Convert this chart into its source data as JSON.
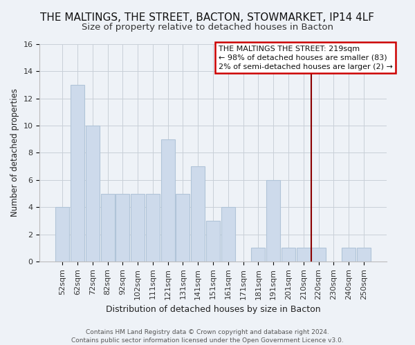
{
  "title": "THE MALTINGS, THE STREET, BACTON, STOWMARKET, IP14 4LF",
  "subtitle": "Size of property relative to detached houses in Bacton",
  "xlabel": "Distribution of detached houses by size in Bacton",
  "ylabel": "Number of detached properties",
  "categories": [
    "52sqm",
    "62sqm",
    "72sqm",
    "82sqm",
    "92sqm",
    "102sqm",
    "111sqm",
    "121sqm",
    "131sqm",
    "141sqm",
    "151sqm",
    "161sqm",
    "171sqm",
    "181sqm",
    "191sqm",
    "201sqm",
    "210sqm",
    "220sqm",
    "230sqm",
    "240sqm",
    "250sqm"
  ],
  "values": [
    4,
    13,
    10,
    5,
    5,
    5,
    5,
    9,
    5,
    7,
    3,
    4,
    0,
    1,
    6,
    1,
    1,
    1,
    0,
    1,
    1
  ],
  "bar_color": "#cddaeb",
  "bar_edge_color": "#b0c4d8",
  "ylim": [
    0,
    16
  ],
  "yticks": [
    0,
    2,
    4,
    6,
    8,
    10,
    12,
    14,
    16
  ],
  "vline_color": "#8b0000",
  "annotation_title": "THE MALTINGS THE STREET: 219sqm",
  "annotation_line1": "← 98% of detached houses are smaller (83)",
  "annotation_line2": "2% of semi-detached houses are larger (2) →",
  "annotation_box_color": "#ffffff",
  "annotation_border_color": "#cc0000",
  "footer1": "Contains HM Land Registry data © Crown copyright and database right 2024.",
  "footer2": "Contains public sector information licensed under the Open Government Licence v3.0.",
  "background_color": "#eef2f7",
  "grid_color": "#c8cfd8",
  "title_fontsize": 11,
  "subtitle_fontsize": 9.5,
  "xlabel_fontsize": 9,
  "ylabel_fontsize": 8.5,
  "tick_fontsize": 8,
  "footer_fontsize": 6.5,
  "annotation_fontsize": 8
}
